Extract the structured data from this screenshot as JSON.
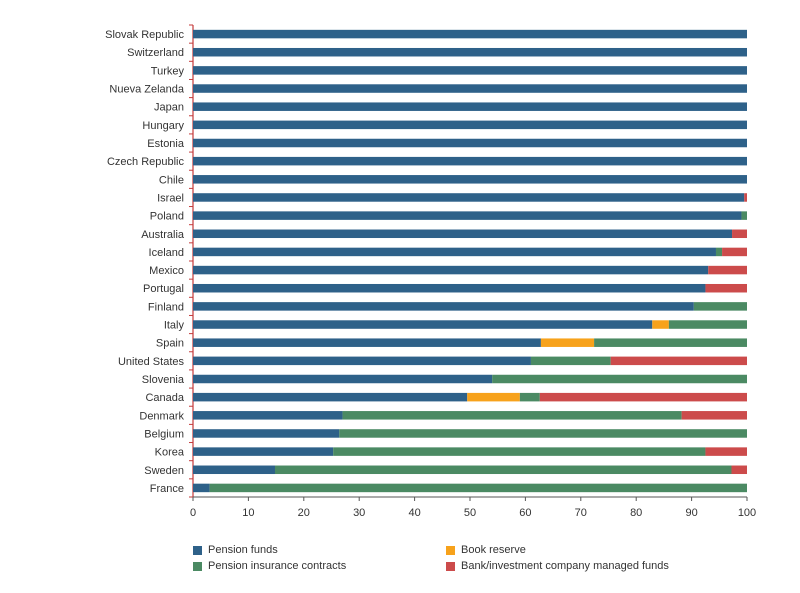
{
  "chart_data": {
    "type": "bar",
    "orientation": "horizontal",
    "stacked": true,
    "title": "",
    "xlabel": "",
    "ylabel": "",
    "xlim": [
      0,
      100
    ],
    "x_ticks": [
      "0",
      "10",
      "20",
      "30",
      "40",
      "50",
      "60",
      "70",
      "80",
      "90",
      "100"
    ],
    "grid": false,
    "legend_position": "bottom",
    "categories": [
      "Slovak Republic",
      "Switzerland",
      "Turkey",
      "Nueva Zelanda",
      "Japan",
      "Hungary",
      "Estonia",
      "Czech Republic",
      "Chile",
      "Israel",
      "Poland",
      "Australia",
      "Iceland",
      "Mexico",
      "Portugal",
      "Finland",
      "Italy",
      "Spain",
      "United States",
      "Slovenia",
      "Canada",
      "Denmark",
      "Belgium",
      "Korea",
      "Sweden",
      "France"
    ],
    "series": [
      {
        "name": "Pension funds",
        "color": "#2e6189",
        "values": [
          100,
          100,
          100,
          100,
          100,
          100,
          100,
          100,
          100,
          99.5,
          99,
          97.3,
          94.4,
          93,
          92.5,
          90.4,
          82.9,
          62.8,
          61,
          54,
          49.5,
          27,
          26.4,
          25.3,
          14.8,
          3
        ]
      },
      {
        "name": "Book reserve",
        "color": "#f7a21b",
        "values": [
          0,
          0,
          0,
          0,
          0,
          0,
          0,
          0,
          0,
          0,
          0,
          0,
          0,
          0,
          0,
          0,
          3,
          9.6,
          0,
          0,
          9.5,
          0,
          0,
          0,
          0,
          0
        ]
      },
      {
        "name": "Pension insurance contracts",
        "color": "#4b8a63",
        "values": [
          0,
          0,
          0,
          0,
          0,
          0,
          0,
          0,
          0,
          0,
          1,
          0,
          1.1,
          0,
          0,
          9.6,
          14.1,
          27.6,
          14.4,
          46,
          3.6,
          61.2,
          73.6,
          67.2,
          82.4,
          97
        ]
      },
      {
        "name": "Bank/investment company managed funds",
        "color": "#cc4b4b",
        "values": [
          0,
          0,
          0,
          0,
          0,
          0,
          0,
          0,
          0,
          0.5,
          0,
          2.7,
          4.5,
          7,
          7.5,
          0,
          0,
          0,
          24.6,
          0,
          37.4,
          11.8,
          0,
          7.5,
          2.8,
          0
        ]
      }
    ]
  },
  "legend": {
    "items": [
      {
        "label": "Pension funds",
        "color": "#2e6189"
      },
      {
        "label": "Book reserve",
        "color": "#f7a21b"
      },
      {
        "label": "Pension insurance contracts",
        "color": "#4b8a63"
      },
      {
        "label": "Bank/investment company managed funds",
        "color": "#cc4b4b"
      }
    ]
  }
}
